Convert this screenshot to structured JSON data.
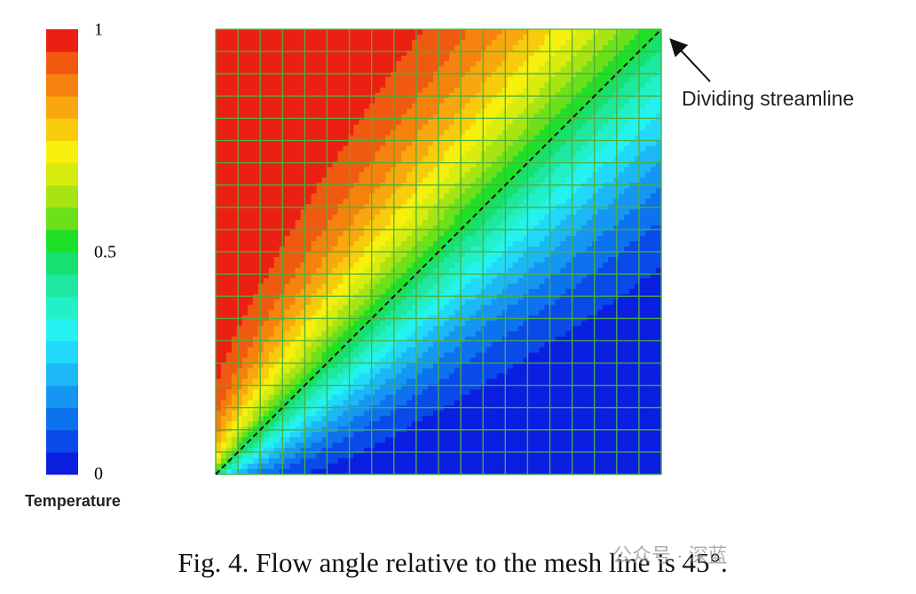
{
  "colorbar": {
    "title": "Temperature",
    "ticks": [
      "1",
      "0.5",
      "0"
    ]
  },
  "plot": {
    "annotation": "Dividing streamline"
  },
  "caption": "Fig. 4. Flow angle relative to the mesh line is 45°.",
  "watermark": "公众号 · 深蓝"
}
